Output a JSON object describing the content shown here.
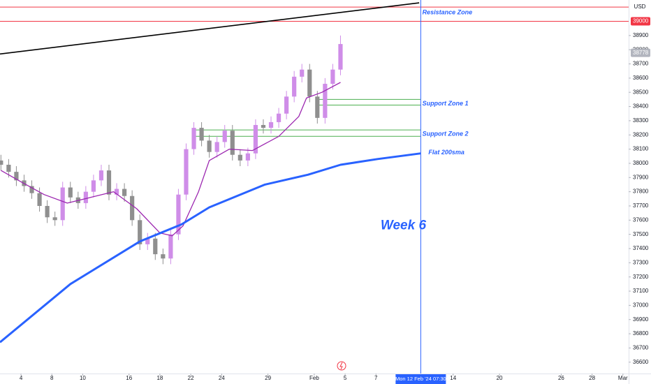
{
  "chart_data": {
    "type": "candlestick",
    "currency": "USD",
    "xlim": [
      -1.36,
      39.37
    ],
    "ylim": [
      36520,
      39150
    ],
    "xticks": [
      {
        "value": 0,
        "label": "4"
      },
      {
        "value": 2,
        "label": "8"
      },
      {
        "value": 4,
        "label": "10"
      },
      {
        "value": 7,
        "label": "16"
      },
      {
        "value": 9,
        "label": "18"
      },
      {
        "value": 11,
        "label": "22"
      },
      {
        "value": 13,
        "label": "24"
      },
      {
        "value": 16,
        "label": "29"
      },
      {
        "value": 19,
        "label": "Feb"
      },
      {
        "value": 21,
        "label": "5"
      },
      {
        "value": 23,
        "label": "7"
      },
      {
        "value": 28,
        "label": "14"
      },
      {
        "value": 31,
        "label": "20"
      },
      {
        "value": 35,
        "label": "26"
      },
      {
        "value": 37,
        "label": "28"
      },
      {
        "value": 39,
        "label": "Mar"
      }
    ],
    "yticks": [
      36600,
      36700,
      36800,
      36900,
      37000,
      37100,
      37200,
      37300,
      37400,
      37500,
      37600,
      37700,
      37800,
      37900,
      38000,
      38100,
      38200,
      38300,
      38400,
      38500,
      38600,
      38700,
      38800,
      38900
    ],
    "up_color": "#cf8de8",
    "down_color": "#8f8f8f",
    "x": [
      -1.3,
      -0.8,
      -0.3,
      0.2,
      0.7,
      1.2,
      1.7,
      2.2,
      2.7,
      3.2,
      3.7,
      4.2,
      4.7,
      5.2,
      5.7,
      6.2,
      6.7,
      7.2,
      7.7,
      8.2,
      8.7,
      9.2,
      9.7,
      10.2,
      10.7,
      11.2,
      11.7,
      12.2,
      12.7,
      13.2,
      13.7,
      14.2,
      14.7,
      15.2,
      15.7,
      16.2,
      16.7,
      17.2,
      17.7,
      18.2,
      18.7,
      19.2,
      19.7,
      20.2,
      20.7
    ],
    "open": [
      38020,
      37990,
      37940,
      37880,
      37840,
      37790,
      37700,
      37620,
      37600,
      37830,
      37760,
      37720,
      37800,
      37880,
      37950,
      37780,
      37820,
      37770,
      37600,
      37430,
      37470,
      37360,
      37330,
      37500,
      37780,
      38100,
      38250,
      38160,
      38080,
      38150,
      38230,
      38060,
      38020,
      38070,
      38270,
      38250,
      38290,
      38350,
      38470,
      38610,
      38660,
      38470,
      38320,
      38560,
      38660
    ],
    "high": [
      38060,
      38030,
      37980,
      37920,
      37880,
      37830,
      37740,
      37660,
      37870,
      37870,
      37800,
      37840,
      37920,
      37990,
      37990,
      37860,
      37860,
      37810,
      37640,
      37510,
      37510,
      37400,
      37540,
      37820,
      38140,
      38290,
      38290,
      38200,
      38190,
      38270,
      38270,
      38100,
      38110,
      38310,
      38310,
      38330,
      38390,
      38510,
      38650,
      38700,
      38700,
      38510,
      38600,
      38700,
      38900
    ],
    "low": [
      37950,
      37900,
      37840,
      37800,
      37750,
      37660,
      37580,
      37560,
      37560,
      37720,
      37680,
      37680,
      37760,
      37840,
      37740,
      37740,
      37730,
      37560,
      37390,
      37390,
      37320,
      37290,
      37290,
      37460,
      37740,
      38060,
      38120,
      38040,
      38040,
      38110,
      38020,
      37980,
      37980,
      38030,
      38210,
      38210,
      38250,
      38310,
      38430,
      38570,
      38430,
      38280,
      38280,
      38520,
      38620
    ],
    "close": [
      37990,
      37940,
      37880,
      37840,
      37790,
      37700,
      37620,
      37600,
      37830,
      37760,
      37720,
      37800,
      37880,
      37950,
      37780,
      37820,
      37770,
      37600,
      37430,
      37470,
      37360,
      37330,
      37500,
      37780,
      38100,
      38250,
      38160,
      38080,
      38150,
      38230,
      38060,
      38020,
      38070,
      38270,
      38250,
      38290,
      38350,
      38470,
      38610,
      38660,
      38470,
      38320,
      38560,
      38660,
      38840
    ],
    "lines": [
      {
        "color": "#9c27b0",
        "width": 1.3,
        "x": [
          -1.3,
          0,
          1.5,
          3,
          4.5,
          6,
          7.5,
          9,
          9.8,
          10.5,
          11.5,
          12.2,
          13.5,
          15,
          16.7,
          18,
          18.5,
          19.5,
          20.7
        ],
        "values": [
          37950,
          37870,
          37780,
          37720,
          37760,
          37800,
          37680,
          37510,
          37490,
          37560,
          37800,
          38020,
          38100,
          38090,
          38190,
          38330,
          38460,
          38500,
          38570
        ]
      },
      {
        "color": "#2962ff",
        "width": 3,
        "x": [
          -1.36,
          3.2,
          7.7,
          10.4,
          12.2,
          15.8,
          18.6,
          20.7,
          23.1,
          25.9
        ],
        "values": [
          36740,
          37150,
          37450,
          37570,
          37690,
          37850,
          37920,
          37990,
          38030,
          38070
        ]
      },
      {
        "color": "#000000",
        "width": 1.6,
        "x": [
          -1.36,
          25.8
        ],
        "values": [
          38770,
          39130
        ]
      }
    ],
    "hlines": [
      {
        "value": 39100,
        "color": "#f23645",
        "from": -1.36
      },
      {
        "value": 39000,
        "color": "#f23645",
        "from": -1.36
      },
      {
        "value": 38450,
        "color": "#4caf50",
        "from": 19.2,
        "to": 25.9
      },
      {
        "value": 38410,
        "color": "#4caf50",
        "from": 19.2,
        "to": 25.9
      },
      {
        "value": 38235,
        "color": "#4caf50",
        "from": 11.2,
        "to": 25.9
      },
      {
        "value": 38190,
        "color": "#4caf50",
        "from": 11.2,
        "to": 25.9
      }
    ],
    "annotations": [
      {
        "text": "Resistance Zone",
        "x": 26,
        "y": 39060
      },
      {
        "text": "Support Zone 1",
        "x": 26,
        "y": 38420
      },
      {
        "text": "Support Zone 2",
        "x": 26,
        "y": 38205
      },
      {
        "text": "Flat 200sma",
        "x": 26.4,
        "y": 38075
      },
      {
        "text": "Week 6",
        "x": 23.3,
        "y": 37560,
        "big": true
      }
    ],
    "crosshair": {
      "x": 25.9,
      "label": "Mon 12 Feb '24   07:30",
      "color": "#2962ff"
    },
    "price_tags": [
      {
        "value": 39000,
        "label": "39000",
        "color": "#f23645"
      },
      {
        "value": 38778,
        "label": "38778",
        "color": "#b2b5be"
      }
    ]
  }
}
